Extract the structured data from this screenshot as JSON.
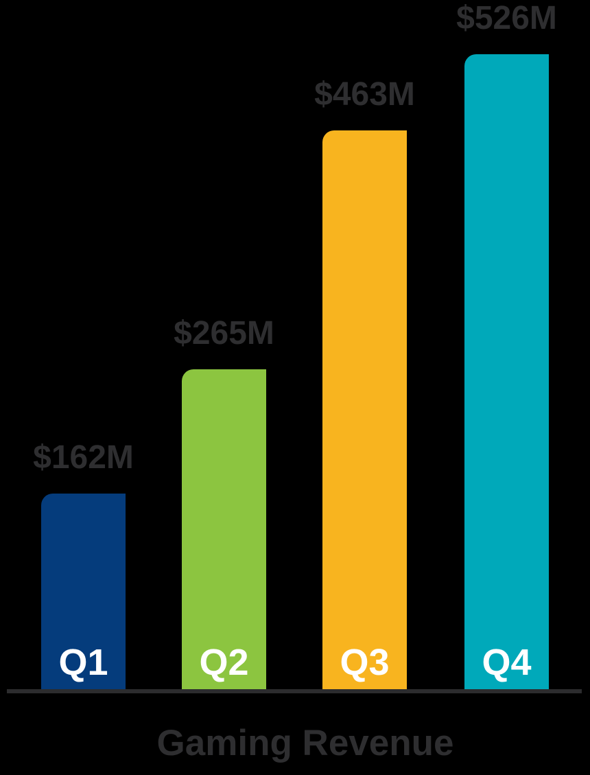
{
  "chart_data": {
    "type": "bar",
    "title": "Gaming Revenue",
    "categories": [
      "Q1",
      "Q2",
      "Q3",
      "Q4"
    ],
    "values": [
      162,
      265,
      463,
      526
    ],
    "value_labels": [
      "$162M",
      "$265M",
      "$463M",
      "$526M"
    ],
    "unit": "millions USD",
    "series": [
      {
        "name": "Gaming Revenue",
        "values": [
          162,
          265,
          463,
          526
        ]
      }
    ],
    "ylim": [
      0,
      560
    ],
    "grid": false,
    "legend": false,
    "xlabel": "",
    "ylabel": "",
    "colors": {
      "background": "#000000",
      "bar_q1": "#053c7c",
      "bar_q2": "#8cc540",
      "bar_q3": "#f8b41f",
      "bar_q4": "#00a9ba",
      "value_label_text": "#2e2e30",
      "category_label_text": "#ffffff",
      "axis_line": "#2c2c2e",
      "title_text": "#2e2e30"
    }
  }
}
